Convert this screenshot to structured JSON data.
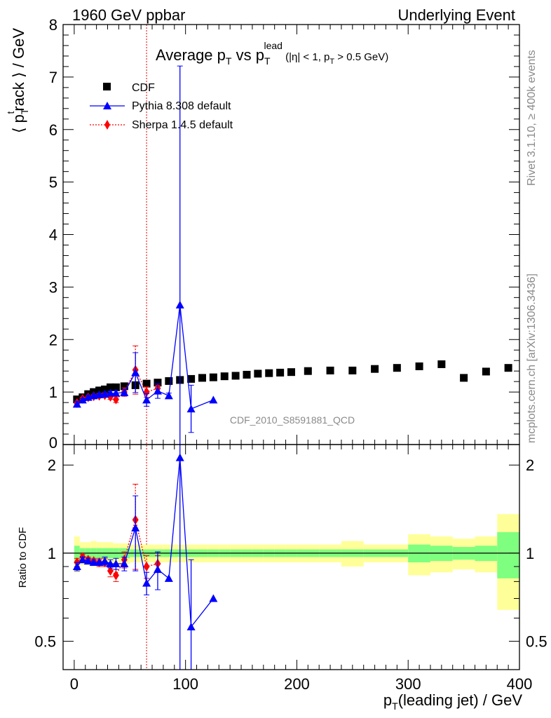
{
  "header": {
    "left": "1960 GeV ppbar",
    "right": "Underlying Event"
  },
  "side": {
    "rivet": "Rivet 3.1.10, ≥ 400k events",
    "mcplots": "mcplots.cern.ch [arXiv:1306.3436]"
  },
  "chart_data": [
    {
      "type": "scatter",
      "title": {
        "part1": "Average p",
        "part2": " vs p",
        "sup": "lead",
        "part3": " (|η| < 1, p",
        "part4": " > 0.5 GeV)",
        "sub": "T"
      },
      "ylabel": {
        "open": "⟨ p",
        "sub": "T",
        "sup": "t",
        "rest": "rack ⟩ / GeV"
      },
      "watermark": "CDF_2010_S8591881_QCD",
      "xlim": [
        -10,
        400
      ],
      "ylim": [
        0,
        8
      ],
      "yticks": [
        "0",
        "1",
        "2",
        "3",
        "4",
        "5",
        "6",
        "7",
        "8"
      ],
      "vline_x": 65,
      "legend": [
        {
          "name": "CDF",
          "color": "#000000",
          "marker": "square"
        },
        {
          "name": "Pythia 8.308 default",
          "color": "#0000ff",
          "marker": "triangle"
        },
        {
          "name": "Sherpa 1.4.5 default",
          "color": "#ff0000",
          "marker": "diamond"
        }
      ],
      "series": [
        {
          "name": "CDF",
          "x": [
            2.5,
            7.5,
            12.5,
            17.5,
            22.5,
            27.5,
            32.5,
            37.5,
            45,
            55,
            65,
            75,
            85,
            95,
            105,
            115,
            125,
            135,
            145,
            155,
            165,
            175,
            185,
            195,
            210,
            230,
            250,
            270,
            290,
            310,
            330,
            350,
            370,
            390
          ],
          "y": [
            0.86,
            0.9,
            0.96,
            1.0,
            1.03,
            1.05,
            1.09,
            1.09,
            1.11,
            1.13,
            1.16,
            1.18,
            1.21,
            1.23,
            1.25,
            1.27,
            1.28,
            1.3,
            1.31,
            1.33,
            1.35,
            1.36,
            1.37,
            1.38,
            1.4,
            1.41,
            1.41,
            1.44,
            1.46,
            1.49,
            1.53,
            1.27,
            1.39,
            1.46
          ]
        },
        {
          "name": "Pythia 8.308 default",
          "x": [
            2.5,
            7.5,
            12.5,
            17.5,
            22.5,
            27.5,
            32.5,
            37.5,
            45,
            55,
            65,
            75,
            85,
            95,
            105,
            125
          ],
          "y": [
            0.77,
            0.85,
            0.9,
            0.93,
            0.95,
            0.96,
            0.98,
            0.98,
            0.99,
            1.37,
            0.85,
            1.02,
            0.93,
            2.66,
            0.68,
            0.85
          ],
          "err": [
            0.05,
            0.03,
            0.03,
            0.03,
            0.03,
            0.04,
            0.04,
            0.05,
            0.06,
            0.38,
            0.12,
            0.14,
            0.05,
            4.55,
            0.45,
            0.0
          ]
        },
        {
          "name": "Sherpa 1.4.5 default",
          "x": [
            2.5,
            7.5,
            12.5,
            17.5,
            22.5,
            27.5,
            32.5,
            37.5,
            45,
            55,
            65,
            75
          ],
          "y": [
            0.79,
            0.87,
            0.9,
            0.92,
            0.93,
            0.94,
            0.91,
            0.86,
            1.0,
            1.42,
            1.0,
            1.07
          ],
          "err": [
            0.03,
            0.03,
            0.03,
            0.03,
            0.04,
            0.04,
            0.05,
            0.06,
            0.08,
            0.46,
            0.1,
            0.06
          ]
        }
      ]
    },
    {
      "type": "scatter",
      "ylabel": "Ratio to CDF",
      "xlabel": {
        "pre": "p",
        "sub": "T",
        "post": "(leading jet) / GeV"
      },
      "xticks": [
        "0",
        "100",
        "200",
        "300",
        "400"
      ],
      "yticks": [
        "0.5",
        "1",
        "2"
      ],
      "ylog": true,
      "ylim": [
        0.4,
        2.35
      ],
      "bands": {
        "edges": [
          0,
          5,
          10,
          15,
          20,
          25,
          30,
          35,
          40,
          50,
          60,
          70,
          80,
          90,
          100,
          110,
          120,
          130,
          140,
          150,
          160,
          170,
          180,
          190,
          200,
          220,
          240,
          260,
          280,
          300,
          320,
          340,
          360,
          380,
          400
        ],
        "stat": [
          0.06,
          0.04,
          0.04,
          0.04,
          0.04,
          0.04,
          0.04,
          0.04,
          0.04,
          0.03,
          0.03,
          0.03,
          0.03,
          0.03,
          0.03,
          0.03,
          0.03,
          0.03,
          0.03,
          0.03,
          0.03,
          0.03,
          0.03,
          0.03,
          0.03,
          0.03,
          0.03,
          0.03,
          0.03,
          0.07,
          0.06,
          0.05,
          0.06,
          0.18
        ],
        "total": [
          0.14,
          0.09,
          0.09,
          0.1,
          0.09,
          0.09,
          0.09,
          0.08,
          0.08,
          0.07,
          0.07,
          0.07,
          0.07,
          0.07,
          0.07,
          0.07,
          0.07,
          0.07,
          0.07,
          0.07,
          0.07,
          0.07,
          0.07,
          0.07,
          0.07,
          0.07,
          0.1,
          0.07,
          0.07,
          0.16,
          0.14,
          0.12,
          0.14,
          0.36
        ],
        "stat_color": "#7fff7f",
        "total_color": "#ffff99"
      },
      "series": [
        {
          "name": "Pythia 8.308 default",
          "x": [
            2.5,
            7.5,
            12.5,
            17.5,
            22.5,
            27.5,
            32.5,
            37.5,
            45,
            55,
            65,
            75,
            85,
            95,
            105,
            125
          ],
          "y": [
            0.9,
            0.95,
            0.94,
            0.93,
            0.93,
            0.94,
            0.92,
            0.92,
            0.92,
            1.22,
            0.79,
            0.88,
            0.82,
            2.12,
            0.56,
            0.7
          ],
          "err": [
            0.03,
            0.02,
            0.02,
            0.02,
            0.02,
            0.03,
            0.03,
            0.04,
            0.05,
            0.35,
            0.07,
            0.13,
            0.0,
            3.0,
            0.39,
            0.0
          ]
        },
        {
          "name": "Sherpa 1.4.5 default",
          "x": [
            2.5,
            7.5,
            12.5,
            17.5,
            22.5,
            27.5,
            32.5,
            37.5,
            45,
            55,
            65,
            75
          ],
          "y": [
            0.93,
            0.97,
            0.95,
            0.94,
            0.93,
            0.93,
            0.87,
            0.84,
            0.95,
            1.3,
            0.9,
            0.92
          ],
          "err": [
            0.03,
            0.02,
            0.02,
            0.02,
            0.03,
            0.03,
            0.04,
            0.04,
            0.06,
            0.42,
            0.08,
            0.06
          ]
        }
      ]
    }
  ]
}
